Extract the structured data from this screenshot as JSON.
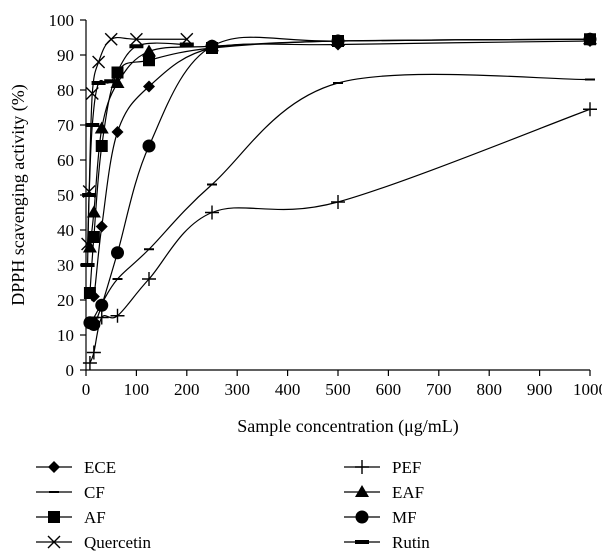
{
  "chart_data": {
    "type": "line",
    "title": "",
    "xlabel": "Sample concentration (μg/mL)",
    "ylabel": "DPPH scavenging activity (%)",
    "xlim": [
      0,
      1000
    ],
    "ylim": [
      0,
      100
    ],
    "xticks": [
      "0",
      "100",
      "200",
      "300",
      "400",
      "500",
      "600",
      "700",
      "800",
      "900",
      "1000"
    ],
    "yticks": [
      "0",
      "10",
      "20",
      "30",
      "40",
      "50",
      "60",
      "70",
      "80",
      "90",
      "100"
    ],
    "grid": false,
    "legend_position": "bottom",
    "series": [
      {
        "name": "ECE",
        "marker": "diamond",
        "x": [
          7.8,
          15.6,
          31.25,
          62.5,
          125,
          250,
          500,
          1000
        ],
        "y": [
          22,
          21,
          41,
          68,
          81,
          92,
          93,
          94
        ]
      },
      {
        "name": "PEF",
        "marker": "plus",
        "x": [
          7.8,
          15.6,
          31.25,
          62.5,
          125,
          250,
          500,
          1000
        ],
        "y": [
          2,
          5,
          15,
          15.5,
          26,
          45,
          48,
          74.5
        ]
      },
      {
        "name": "CF",
        "marker": "dash",
        "x": [
          7.8,
          15.6,
          31.25,
          62.5,
          125,
          250,
          500,
          1000
        ],
        "y": [
          14,
          15,
          19,
          26,
          34.5,
          53,
          82,
          83
        ]
      },
      {
        "name": "EAF",
        "marker": "triangle",
        "x": [
          7.8,
          15.6,
          31.25,
          62.5,
          125,
          250,
          500,
          1000
        ],
        "y": [
          35,
          45,
          69,
          82,
          91,
          92.5,
          94,
          94.5
        ]
      },
      {
        "name": "AF",
        "marker": "square",
        "x": [
          7.8,
          15.6,
          31.25,
          62.5,
          125,
          250,
          500,
          1000
        ],
        "y": [
          22,
          38,
          64,
          85,
          88.5,
          92,
          94,
          94.5
        ]
      },
      {
        "name": "MF",
        "marker": "circle",
        "x": [
          7.8,
          15.6,
          31.25,
          62.5,
          125,
          250,
          500,
          1000
        ],
        "y": [
          13.5,
          13,
          18.5,
          33.5,
          64,
          92.5,
          94,
          94.5
        ]
      },
      {
        "name": "Quercetin",
        "marker": "x",
        "x": [
          3.125,
          6.25,
          12.5,
          25,
          50,
          100,
          200
        ],
        "y": [
          36,
          51,
          79,
          88,
          94.5,
          94.5,
          94.5
        ]
      },
      {
        "name": "Rutin",
        "marker": "dash-bold",
        "x": [
          3.125,
          6.25,
          12.5,
          25,
          50,
          100,
          200
        ],
        "y": [
          30,
          50,
          70,
          82,
          82.5,
          92.5,
          93
        ]
      }
    ]
  }
}
